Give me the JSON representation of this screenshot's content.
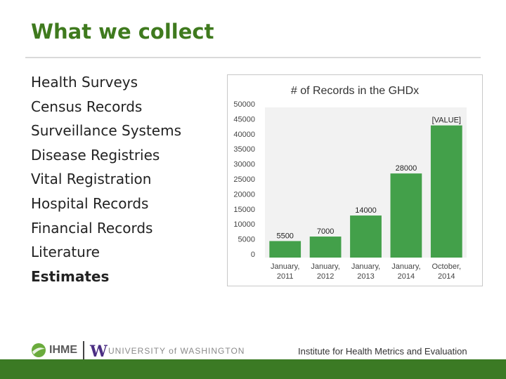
{
  "slide": {
    "title": "What we collect",
    "bullets": [
      "Health Surveys",
      "Census Records",
      "Surveillance Systems",
      "Disease Registries",
      "Vital Registration",
      "Hospital Records",
      "Financial Records",
      "Literature",
      "Estimates"
    ]
  },
  "footer": {
    "ihme": "IHME",
    "uw_letter": "W",
    "university": "UNIVERSITY of WASHINGTON",
    "institute": "Institute for Health Metrics and Evaluation"
  },
  "colors": {
    "accent": "#3f7a1e",
    "bar": "#43a04a",
    "footer": "#3b7a24"
  },
  "chart_data": {
    "type": "bar",
    "title": "# of Records in the GHDx",
    "categories": [
      "January, 2011",
      "January, 2012",
      "January, 2013",
      "January, 2014",
      "October, 2014"
    ],
    "values": [
      5500,
      7000,
      14000,
      28000,
      44000
    ],
    "data_labels": [
      "5500",
      "7000",
      "14000",
      "28000",
      "[VALUE]"
    ],
    "ylim": [
      0,
      50000
    ],
    "yticks": [
      0,
      5000,
      10000,
      15000,
      20000,
      25000,
      30000,
      35000,
      40000,
      45000,
      50000
    ],
    "grid": false,
    "legend": "none"
  }
}
